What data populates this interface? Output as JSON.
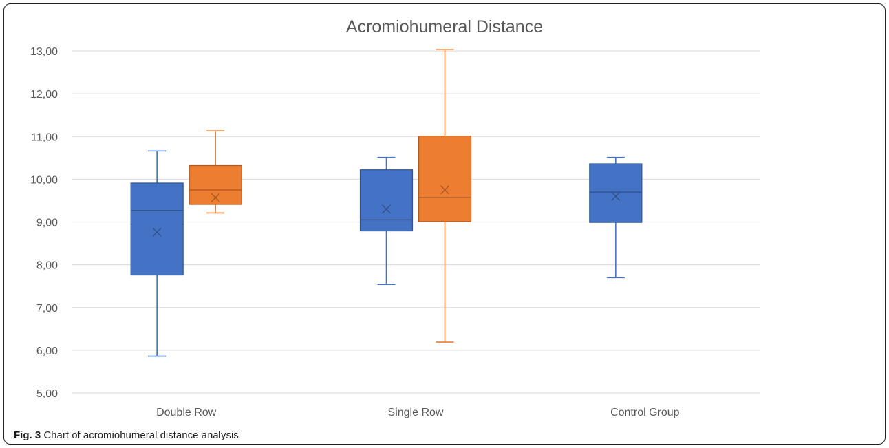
{
  "caption": {
    "label": "Fig. 3",
    "text": "Chart of acromiohumeral distance analysis"
  },
  "chart_data": {
    "type": "box",
    "title": "Acromiohumeral Distance",
    "xlabel": "",
    "ylabel": "",
    "ylim": [
      5,
      13
    ],
    "y_ticks": [
      "5,00",
      "6,00",
      "7,00",
      "8,00",
      "9,00",
      "10,00",
      "11,00",
      "12,00",
      "13,00"
    ],
    "grid": true,
    "categories": [
      "Double Row",
      "Single Row",
      "Control Group"
    ],
    "series": [
      {
        "color": "#4472C4",
        "boxes": [
          {
            "category": "Double Row",
            "min": 5.86,
            "q1": 7.76,
            "median": 9.27,
            "q3": 9.91,
            "max": 10.66,
            "mean": 8.76
          },
          {
            "category": "Single Row",
            "min": 7.54,
            "q1": 8.79,
            "median": 9.05,
            "q3": 10.22,
            "max": 10.51,
            "mean": 9.3
          },
          {
            "category": "Control Group",
            "min": 7.7,
            "q1": 8.99,
            "median": 9.7,
            "q3": 10.36,
            "max": 10.51,
            "mean": 9.6
          }
        ]
      },
      {
        "color": "#ED7D31",
        "boxes": [
          {
            "category": "Double Row",
            "min": 9.21,
            "q1": 9.41,
            "median": 9.75,
            "q3": 10.32,
            "max": 11.13,
            "mean": 9.57
          },
          {
            "category": "Single Row",
            "min": 6.19,
            "q1": 9.01,
            "median": 9.57,
            "q3": 11.01,
            "max": 13.03,
            "mean": 9.75
          }
        ]
      }
    ]
  }
}
